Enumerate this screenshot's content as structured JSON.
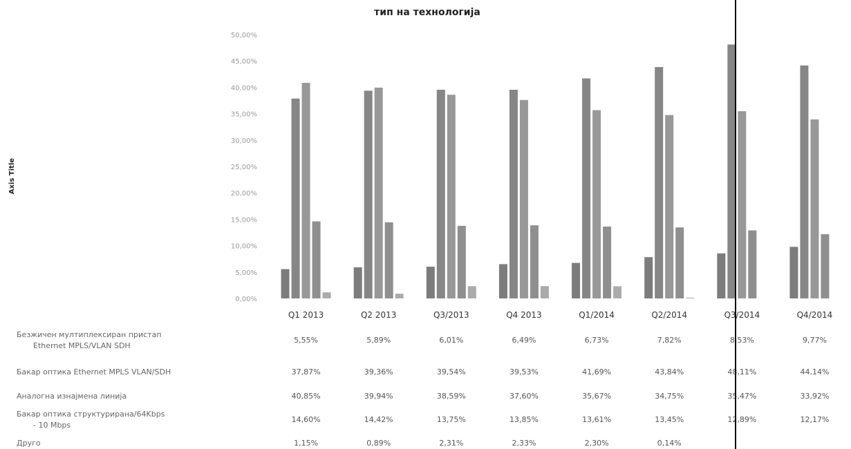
{
  "chart_data": {
    "type": "bar",
    "title": "тип на технологија",
    "ylabel": "Axis Title",
    "ylim": [
      0,
      50
    ],
    "yticks": [
      "0,00%",
      "5,00%",
      "10,00%",
      "15,00%",
      "20,00%",
      "25,00%",
      "30,00%",
      "35,00%",
      "40,00%",
      "45,00%",
      "50,00%"
    ],
    "categories": [
      "Q1 2013",
      "Q2 2013",
      "Q3/2013",
      "Q4 2013",
      "Q1/2014",
      "Q2/2014",
      "Q3/2014",
      "Q4/2014"
    ],
    "series": [
      {
        "name": "Безжичен мултиплексиран пристап Ethernet MPLS/VLAN SDH",
        "values": [
          5.55,
          5.89,
          6.01,
          6.49,
          6.73,
          7.82,
          8.53,
          9.77
        ],
        "labels": [
          "5,55%",
          "5,89%",
          "6,01%",
          "6,49%",
          "6,73%",
          "7,82%",
          "8,53%",
          "9,77%"
        ],
        "color": "#111111"
      },
      {
        "name": "Бакар оптика Ethernet MPLS VLAN/SDH",
        "values": [
          37.87,
          39.36,
          39.54,
          39.53,
          41.69,
          43.84,
          48.11,
          44.14
        ],
        "labels": [
          "37,87%",
          "39,36%",
          "39,54%",
          "39,53%",
          "41,69%",
          "43,84%",
          "48,11%",
          "44,14%"
        ],
        "color": "#222222"
      },
      {
        "name": "Аналогна изнајмена линија",
        "values": [
          40.85,
          39.94,
          38.59,
          37.6,
          35.67,
          34.75,
          35.47,
          33.92
        ],
        "labels": [
          "40,85%",
          "39,94%",
          "38,59%",
          "37,60%",
          "35,67%",
          "34,75%",
          "35,47%",
          "33,92%"
        ],
        "color": "#444444"
      },
      {
        "name": "Бакар оптика структурирана/64Kbps - 10 Mbps",
        "values": [
          14.6,
          14.42,
          13.75,
          13.85,
          13.61,
          13.45,
          12.89,
          12.17
        ],
        "labels": [
          "14,60%",
          "14,42%",
          "13,75%",
          "13,85%",
          "13,61%",
          "13,45%",
          "12,89%",
          "12,17%"
        ],
        "color": "#333333"
      },
      {
        "name": "Друго",
        "values": [
          1.15,
          0.89,
          2.31,
          2.33,
          2.3,
          0.14,
          null,
          null
        ],
        "labels": [
          "1,15%",
          "0,89%",
          "2,31%",
          "2,33%",
          "2,30%",
          "0,14%",
          "",
          ""
        ],
        "color": "#666666"
      }
    ]
  }
}
